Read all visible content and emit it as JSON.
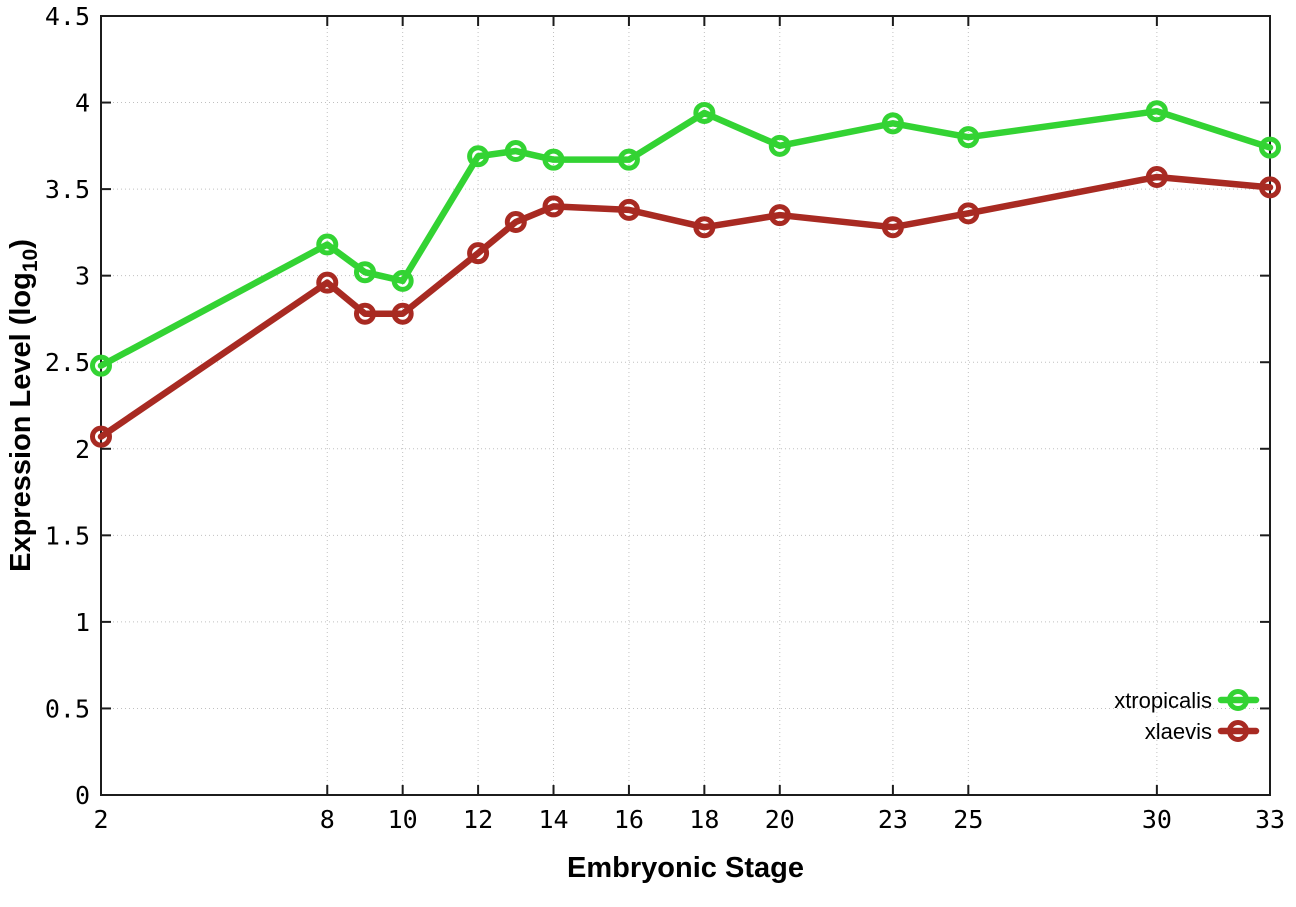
{
  "chart_data": {
    "type": "line",
    "title": "",
    "xlabel": "Embryonic Stage",
    "ylabel": "Expression Level (log10)",
    "ylabel_parts": {
      "pre": "Expression Level (log",
      "sub": "10",
      "post": ")"
    },
    "x": [
      2,
      8,
      9,
      10,
      12,
      13,
      14,
      16,
      18,
      20,
      23,
      25,
      30,
      33
    ],
    "series": [
      {
        "name": "xtropicalis",
        "color": "#33d333",
        "values": [
          2.48,
          3.18,
          3.02,
          2.97,
          3.69,
          3.72,
          3.67,
          3.67,
          3.94,
          3.75,
          3.88,
          3.8,
          3.95,
          3.74
        ]
      },
      {
        "name": "xlaevis",
        "color": "#a82a22",
        "values": [
          2.07,
          2.96,
          2.78,
          2.78,
          3.13,
          3.31,
          3.4,
          3.38,
          3.28,
          3.35,
          3.28,
          3.36,
          3.57,
          3.51
        ]
      }
    ],
    "xticks": [
      2,
      8,
      10,
      12,
      14,
      16,
      18,
      20,
      23,
      25,
      30,
      33
    ],
    "xticklabels": [
      "2",
      "8",
      "10",
      "12",
      "14",
      "16",
      "18",
      "20",
      "23",
      "25",
      "30",
      "33"
    ],
    "yticks": [
      0,
      0.5,
      1,
      1.5,
      2,
      2.5,
      3,
      3.5,
      4,
      4.5
    ],
    "yticklabels": [
      "0",
      "0.5",
      "1",
      "1.5",
      "2",
      "2.5",
      "3",
      "3.5",
      "4",
      "4.5"
    ],
    "xlim": [
      2,
      33
    ],
    "ylim": [
      0,
      4.5
    ],
    "grid": true,
    "legend_position": "bottom-right",
    "marker": "open-circle"
  },
  "colors": {
    "background": "#ffffff",
    "axis": "#1c1c1c",
    "grid": "#c0c0c0",
    "text": "#000000"
  }
}
